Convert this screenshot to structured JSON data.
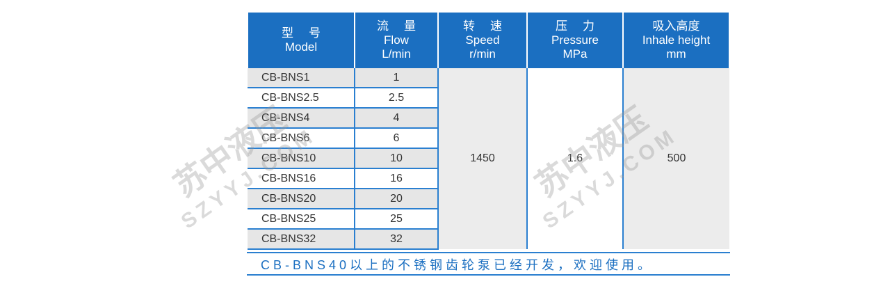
{
  "header": [
    {
      "zh": "型号",
      "en": "Model",
      "unit": ""
    },
    {
      "zh": "流量",
      "en": "Flow",
      "unit": "L/min"
    },
    {
      "zh": "转速",
      "en": "Speed",
      "unit": "r/min"
    },
    {
      "zh": "压力",
      "en": "Pressure",
      "unit": "MPa"
    },
    {
      "zh": "吸入高度",
      "en": "Inhale height",
      "unit": "mm"
    }
  ],
  "rows": [
    {
      "model": "CB-BNS1",
      "flow": "1"
    },
    {
      "model": "CB-BNS2.5",
      "flow": "2.5"
    },
    {
      "model": "CB-BNS4",
      "flow": "4"
    },
    {
      "model": "CB-BNS6",
      "flow": "6"
    },
    {
      "model": "CB-BNS10",
      "flow": "10"
    },
    {
      "model": "CB-BNS16",
      "flow": "16"
    },
    {
      "model": "CB-BNS20",
      "flow": "20"
    },
    {
      "model": "CB-BNS25",
      "flow": "25"
    },
    {
      "model": "CB-BNS32",
      "flow": "32"
    }
  ],
  "shared": {
    "speed": "1450",
    "pressure": "1.6",
    "inhale": "500"
  },
  "footer": "CB-BNS40以上的不锈钢齿轮泵已经开发，欢迎使用。",
  "watermark": {
    "zh": "苏中液压",
    "en": "SZYYJ.COM"
  },
  "colors": {
    "header": "#1b6fc1",
    "border": "#2a7fd0",
    "row_gray": "#e6e6e6"
  }
}
